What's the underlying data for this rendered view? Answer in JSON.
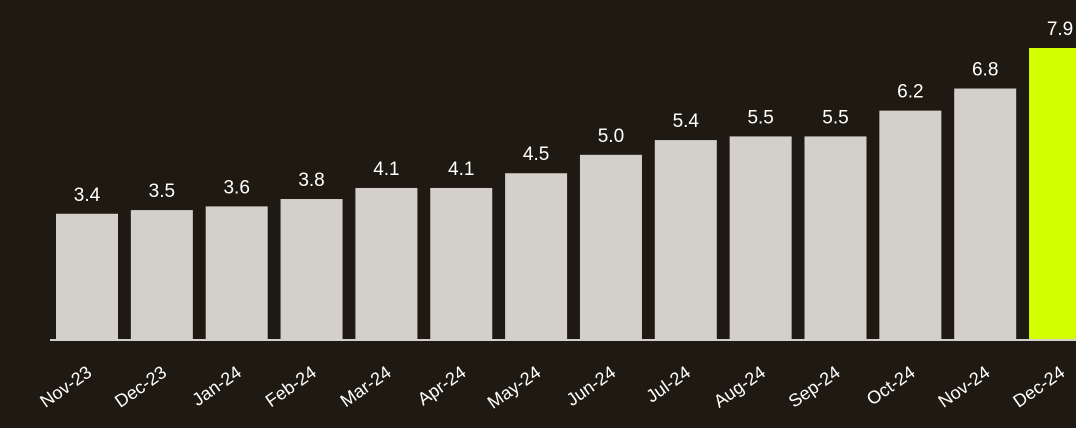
{
  "chart_data": {
    "type": "bar",
    "title": "",
    "xlabel": "",
    "ylabel": "",
    "categories": [
      "Nov-23",
      "Dec-23",
      "Jan-24",
      "Feb-24",
      "Mar-24",
      "Apr-24",
      "May-24",
      "Jun-24",
      "Jul-24",
      "Aug-24",
      "Sep-24",
      "Oct-24",
      "Nov-24",
      "Dec-24"
    ],
    "values": [
      3.4,
      3.5,
      3.6,
      3.8,
      4.1,
      4.1,
      4.5,
      5.0,
      5.4,
      5.5,
      5.5,
      6.2,
      6.8,
      7.9
    ],
    "value_labels": [
      "3.4",
      "3.5",
      "3.6",
      "3.8",
      "4.1",
      "4.1",
      "4.5",
      "5.0",
      "5.4",
      "5.5",
      "5.5",
      "6.2",
      "6.8",
      "7.9"
    ],
    "highlight_index": 13,
    "ylim": [
      0,
      7.9
    ],
    "grid": false,
    "legend": "none",
    "colors": {
      "background": "#1e1911",
      "bar": "#d3cfcb",
      "highlight": "#d4ff00",
      "axis": "#d3cfcb",
      "text": "#ffffff"
    }
  }
}
